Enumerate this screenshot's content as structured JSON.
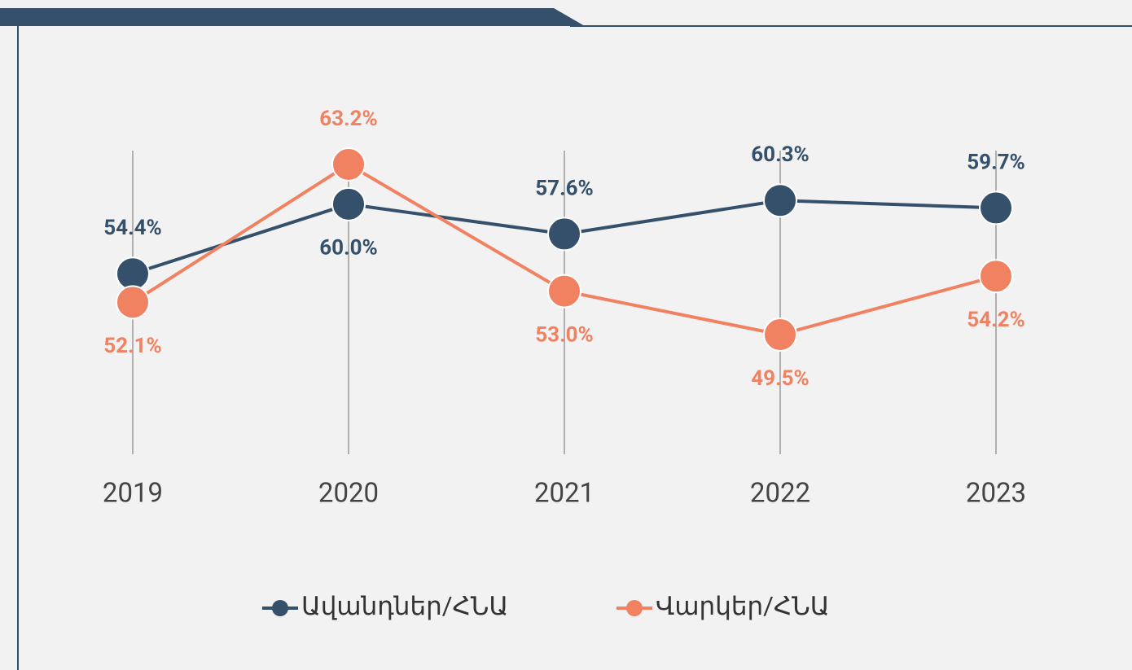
{
  "chart_data": {
    "type": "line",
    "categories": [
      "2019",
      "2020",
      "2021",
      "2022",
      "2023"
    ],
    "series": [
      {
        "name": "Ավանդներ/ՀՆԱ",
        "color": "#34506b",
        "values": [
          54.4,
          60.0,
          57.6,
          60.3,
          59.7
        ],
        "value_labels": [
          "54.4%",
          "60.0%",
          "57.6%",
          "60.3%",
          "59.7%"
        ]
      },
      {
        "name": "Վարկեր/ՀՆԱ",
        "color": "#f08262",
        "values": [
          52.1,
          63.2,
          53.0,
          49.5,
          54.2
        ],
        "value_labels": [
          "52.1%",
          "63.2%",
          "53.0%",
          "49.5%",
          "54.2%"
        ]
      }
    ]
  }
}
